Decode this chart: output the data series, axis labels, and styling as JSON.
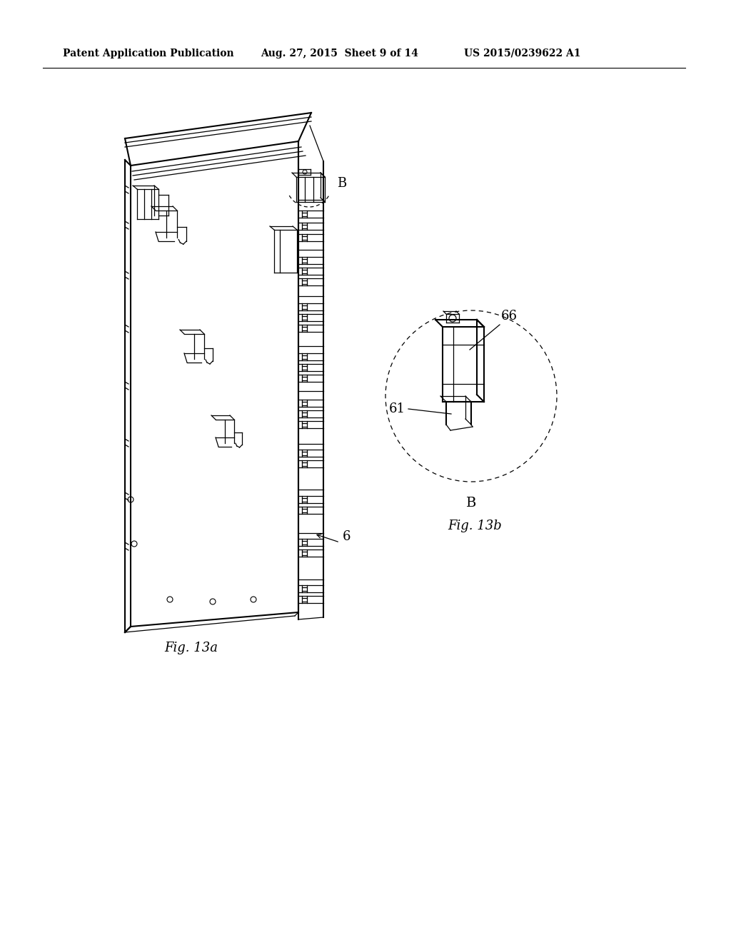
{
  "bg_color": "#ffffff",
  "header_left": "Patent Application Publication",
  "header_mid": "Aug. 27, 2015  Sheet 9 of 14",
  "header_right": "US 2015/0239622 A1",
  "fig_label_a": "Fig. 13a",
  "fig_label_b": "Fig. 13b",
  "label_6": "6",
  "label_61": "61",
  "label_66": "66",
  "label_B1": "B",
  "label_B2": "B"
}
